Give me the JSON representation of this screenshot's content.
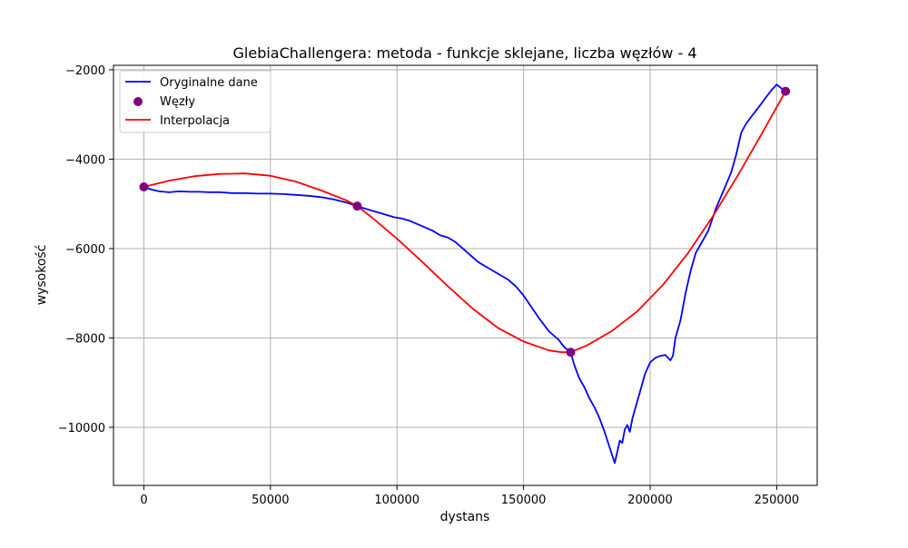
{
  "chart_data": {
    "type": "line",
    "title": "GlebiaChallengera: metoda - funkcje sklejane, liczba węzłów - 4",
    "xlabel": "dystans",
    "ylabel": "wysokość",
    "xlim": [
      -12000,
      266000
    ],
    "ylim": [
      -11300,
      -1900
    ],
    "xticks": [
      0,
      50000,
      100000,
      150000,
      200000,
      250000
    ],
    "xtick_labels": [
      "0",
      "50000",
      "100000",
      "150000",
      "200000",
      "250000"
    ],
    "yticks": [
      -10000,
      -8000,
      -6000,
      -4000,
      -2000
    ],
    "ytick_labels": [
      "−10000",
      "−8000",
      "−6000",
      "−4000",
      "−2000"
    ],
    "grid": true,
    "legend_position": "top-left",
    "legend": [
      "Oryginalne dane",
      "Węzły",
      "Interpolacja"
    ],
    "colors": {
      "original": "#0000ff",
      "nodes": "#800080",
      "interpolation": "#ff0000",
      "grid": "#b0b0b0"
    },
    "series": [
      {
        "name": "Oryginalne dane",
        "style": "line",
        "x": [
          0,
          3000,
          6000,
          10000,
          14000,
          18000,
          22000,
          26000,
          30000,
          35000,
          40000,
          45000,
          50000,
          55000,
          60000,
          65000,
          70000,
          75000,
          80000,
          84000,
          87000,
          90000,
          93000,
          96000,
          99000,
          102000,
          105000,
          108000,
          110000,
          112000,
          114000,
          117000,
          120000,
          123000,
          126000,
          129000,
          132000,
          135000,
          138000,
          141000,
          144000,
          147000,
          150000,
          153000,
          156000,
          158000,
          160000,
          162000,
          164000,
          166000,
          167000,
          168500,
          170000,
          172000,
          174000,
          176000,
          178000,
          180000,
          182000,
          184000,
          186000,
          187000,
          188000,
          189000,
          190000,
          191000,
          192000,
          193000,
          194000,
          196000,
          198000,
          200000,
          202000,
          204000,
          206000,
          208000,
          209000,
          210000,
          212000,
          214000,
          216000,
          218000,
          220000,
          223000,
          226000,
          229000,
          232000,
          234000,
          236000,
          238000,
          240000,
          242000,
          244000,
          246000,
          248000,
          250000,
          251500,
          252500,
          253500
        ],
        "y": [
          -4620,
          -4680,
          -4720,
          -4740,
          -4720,
          -4730,
          -4730,
          -4740,
          -4740,
          -4760,
          -4760,
          -4770,
          -4770,
          -4780,
          -4800,
          -4820,
          -4850,
          -4900,
          -4970,
          -5050,
          -5100,
          -5150,
          -5200,
          -5250,
          -5300,
          -5330,
          -5380,
          -5450,
          -5500,
          -5550,
          -5600,
          -5700,
          -5750,
          -5850,
          -6000,
          -6150,
          -6300,
          -6400,
          -6500,
          -6600,
          -6700,
          -6850,
          -7050,
          -7300,
          -7550,
          -7700,
          -7850,
          -7950,
          -8050,
          -8200,
          -8250,
          -8300,
          -8600,
          -8900,
          -9100,
          -9350,
          -9550,
          -9800,
          -10100,
          -10450,
          -10800,
          -10550,
          -10300,
          -10350,
          -10050,
          -9950,
          -10100,
          -9800,
          -9600,
          -9200,
          -8800,
          -8550,
          -8450,
          -8400,
          -8380,
          -8500,
          -8400,
          -8000,
          -7600,
          -7000,
          -6500,
          -6100,
          -5900,
          -5600,
          -5100,
          -4700,
          -4300,
          -3900,
          -3400,
          -3200,
          -3050,
          -2900,
          -2750,
          -2600,
          -2450,
          -2330,
          -2400,
          -2450,
          -2480
        ]
      },
      {
        "name": "Węzły",
        "style": "scatter",
        "x": [
          0,
          84300,
          168600,
          253500
        ],
        "y": [
          -4620,
          -5050,
          -8320,
          -2480
        ]
      },
      {
        "name": "Interpolacja",
        "style": "line",
        "x": [
          0,
          10000,
          20000,
          30000,
          40000,
          50000,
          60000,
          70000,
          80000,
          84300,
          90000,
          100000,
          110000,
          120000,
          130000,
          140000,
          150000,
          160000,
          165000,
          168600,
          175000,
          185000,
          195000,
          205000,
          215000,
          225000,
          235000,
          245000,
          253500
        ],
        "y": [
          -4620,
          -4480,
          -4380,
          -4330,
          -4320,
          -4370,
          -4500,
          -4700,
          -4920,
          -5050,
          -5300,
          -5780,
          -6300,
          -6840,
          -7350,
          -7780,
          -8080,
          -8280,
          -8320,
          -8320,
          -8170,
          -7840,
          -7400,
          -6820,
          -6100,
          -5260,
          -4330,
          -3340,
          -2480
        ]
      }
    ]
  }
}
